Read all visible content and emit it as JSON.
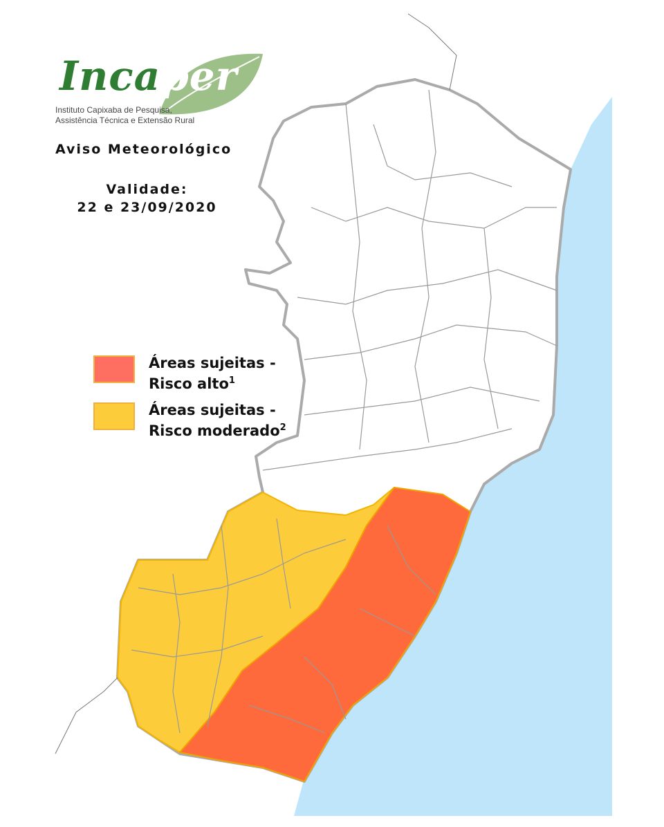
{
  "logo": {
    "name_part1": "Inca",
    "name_part2": "per",
    "subtitle_line1": "Instituto Capixaba de Pesquisa,",
    "subtitle_line2": "Assistência Técnica e Extensão Rural"
  },
  "title": "Aviso Meteorológico",
  "validity": {
    "label": "Validade:",
    "dates": "22 e 23/09/2020"
  },
  "legend": [
    {
      "label_line1": "Áreas sujeitas -",
      "label_line2": "Risco alto",
      "footnote": "1",
      "color": "#ff6f61"
    },
    {
      "label_line1": "Áreas sujeitas -",
      "label_line2": "Risco moderado",
      "footnote": "2",
      "color": "#fdcc3a"
    }
  ],
  "map_colors": {
    "ocean": "#bfe5fa",
    "high_risk": "#ff6a3d",
    "moderate_risk": "#fdcc3a",
    "border": "#a9a9a9",
    "land": "#ffffff"
  }
}
